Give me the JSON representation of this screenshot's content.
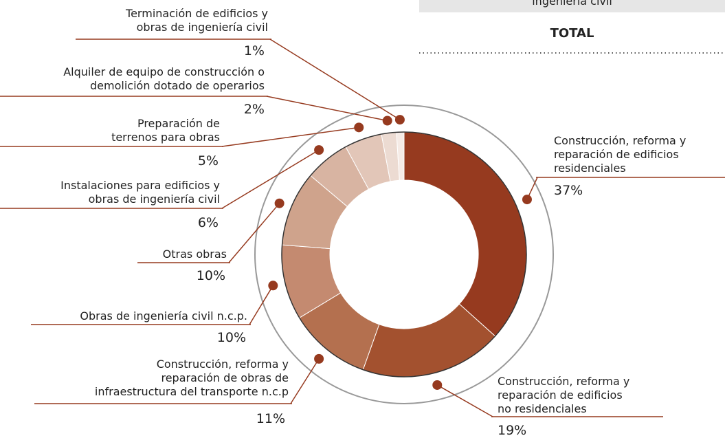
{
  "chart_data": {
    "type": "donut",
    "header_fragment": "ingeniería civil",
    "total_label": "TOTAL",
    "categories": [
      "Construcción, reforma y\nreparación de edificios\nresidenciales",
      "Construcción, reforma y\nreparación de edificios\nno residenciales",
      "Construcción, reforma y\nreparación de obras de\ninfraestructura del transporte n.c.p",
      "Obras de ingeniería civil n.c.p.",
      "Otras obras",
      "Instalaciones para edificios y\nobras de ingeniería civil",
      "Preparación de\nterrenos para obras",
      "Alquiler de equipo de construcción o\ndemolición dotado de operarios",
      "Terminación de edificios y\nobras de ingeniería civil"
    ],
    "values": [
      37,
      19,
      11,
      10,
      10,
      6,
      5,
      2,
      1
    ],
    "value_labels": [
      "37%",
      "19%",
      "11%",
      "10%",
      "10%",
      "6%",
      "5%",
      "2%",
      "1%"
    ],
    "colors": [
      "#963a1f",
      "#a3512f",
      "#b4704f",
      "#c48a70",
      "#cfa38c",
      "#d8b4a2",
      "#e2c6b8",
      "#ecdbd2",
      "#f5ebe6"
    ],
    "accent_color": "#963a1f"
  }
}
